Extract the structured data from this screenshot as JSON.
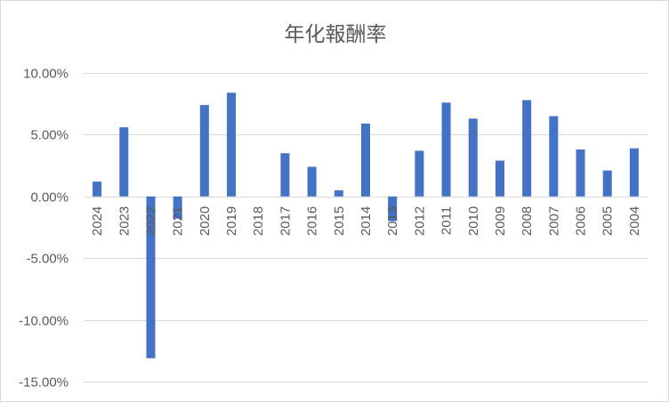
{
  "chart_data": {
    "type": "bar",
    "title": "年化報酬率",
    "xlabel": "",
    "ylabel": "",
    "categories": [
      "2024",
      "2023",
      "2022",
      "2021",
      "2020",
      "2019",
      "2018",
      "2017",
      "2016",
      "2015",
      "2014",
      "2013",
      "2012",
      "2011",
      "2010",
      "2009",
      "2008",
      "2007",
      "2006",
      "2005",
      "2004"
    ],
    "values": [
      1.2,
      5.6,
      -13.1,
      -1.8,
      7.4,
      8.4,
      0.0,
      3.5,
      2.4,
      0.5,
      5.9,
      -2.0,
      3.7,
      7.6,
      6.3,
      2.9,
      7.8,
      6.5,
      3.8,
      2.1,
      3.9
    ],
    "ylim": [
      -15,
      10
    ],
    "yticks": [
      10,
      5,
      0,
      -5,
      -10,
      -15
    ],
    "ytick_labels": [
      "10.00%",
      "5.00%",
      "0.00%",
      "-5.00%",
      "-10.00%",
      "-15.00%"
    ],
    "grid": true,
    "legend": "none",
    "bar_color": "#4472c4",
    "grid_color": "#d9d9d9"
  }
}
